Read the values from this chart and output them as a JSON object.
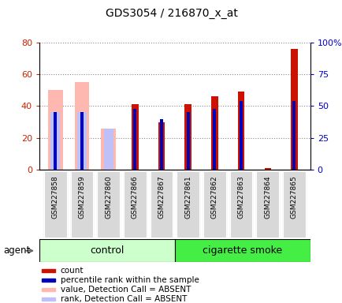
{
  "title": "GDS3054 / 216870_x_at",
  "samples": [
    "GSM227858",
    "GSM227859",
    "GSM227860",
    "GSM227866",
    "GSM227867",
    "GSM227861",
    "GSM227862",
    "GSM227863",
    "GSM227864",
    "GSM227865"
  ],
  "n_control": 5,
  "n_smoke": 5,
  "count": [
    0,
    0,
    0,
    41,
    30,
    41,
    46,
    49,
    1,
    76
  ],
  "rank_pct": [
    45,
    45,
    0,
    47.5,
    40,
    45,
    47.5,
    53.75,
    0,
    53.75
  ],
  "absent_value": [
    50,
    55,
    26,
    0,
    0,
    0,
    0,
    0,
    0,
    0
  ],
  "absent_rank_pct": [
    45,
    45,
    32.5,
    0,
    0,
    0,
    0,
    0,
    0,
    0
  ],
  "ylim_left": [
    0,
    80
  ],
  "ylim_right": [
    0,
    100
  ],
  "yticks_left": [
    0,
    20,
    40,
    60,
    80
  ],
  "yticks_right": [
    0,
    25,
    50,
    75,
    100
  ],
  "ytick_labels_left": [
    "0",
    "20",
    "40",
    "60",
    "80"
  ],
  "ytick_labels_right": [
    "0",
    "25",
    "50",
    "75",
    "100%"
  ],
  "bar_color_count": "#cc1100",
  "bar_color_rank": "#0000bb",
  "bar_color_absent_value": "#ffb8b0",
  "bar_color_absent_rank": "#c0c0f8",
  "control_label": "control",
  "smoke_label": "cigarette smoke",
  "control_color": "#ccffcc",
  "smoke_color": "#44ee44",
  "agent_label": "agent",
  "legend_items": [
    {
      "color": "#cc1100",
      "label": "count"
    },
    {
      "color": "#0000bb",
      "label": "percentile rank within the sample"
    },
    {
      "color": "#ffb8b0",
      "label": "value, Detection Call = ABSENT"
    },
    {
      "color": "#c0c0f8",
      "label": "rank, Detection Call = ABSENT"
    }
  ],
  "tick_color_left": "#cc2200",
  "tick_color_right": "#0000cc",
  "xlabel_bg": "#d8d8d8"
}
